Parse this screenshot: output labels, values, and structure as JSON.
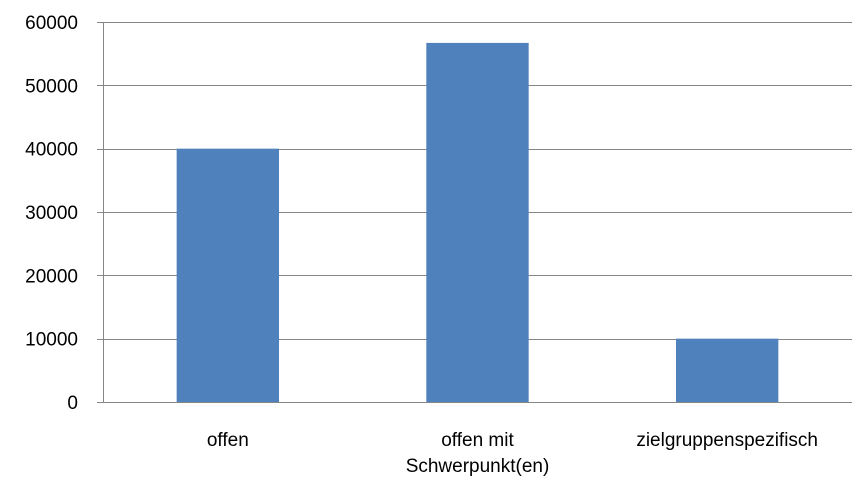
{
  "chart_data": {
    "type": "bar",
    "title": "",
    "xlabel": "",
    "ylabel": "",
    "categories": [
      [
        "offen"
      ],
      [
        "offen mit",
        "Schwerpunkt(en)"
      ],
      [
        "zielgruppenspezifisch"
      ]
    ],
    "values": [
      40000,
      56700,
      10000
    ],
    "ylim": [
      0,
      60000
    ],
    "yticks": [
      0,
      10000,
      20000,
      30000,
      40000,
      50000,
      60000
    ],
    "ytick_labels": [
      "0",
      "10000",
      "20000",
      "30000",
      "40000",
      "50000",
      "60000"
    ],
    "grid": true,
    "legend": "none",
    "colors": {
      "bar": "#4f81bd",
      "grid": "#868686",
      "axis": "#868686",
      "text": "#000000"
    }
  }
}
